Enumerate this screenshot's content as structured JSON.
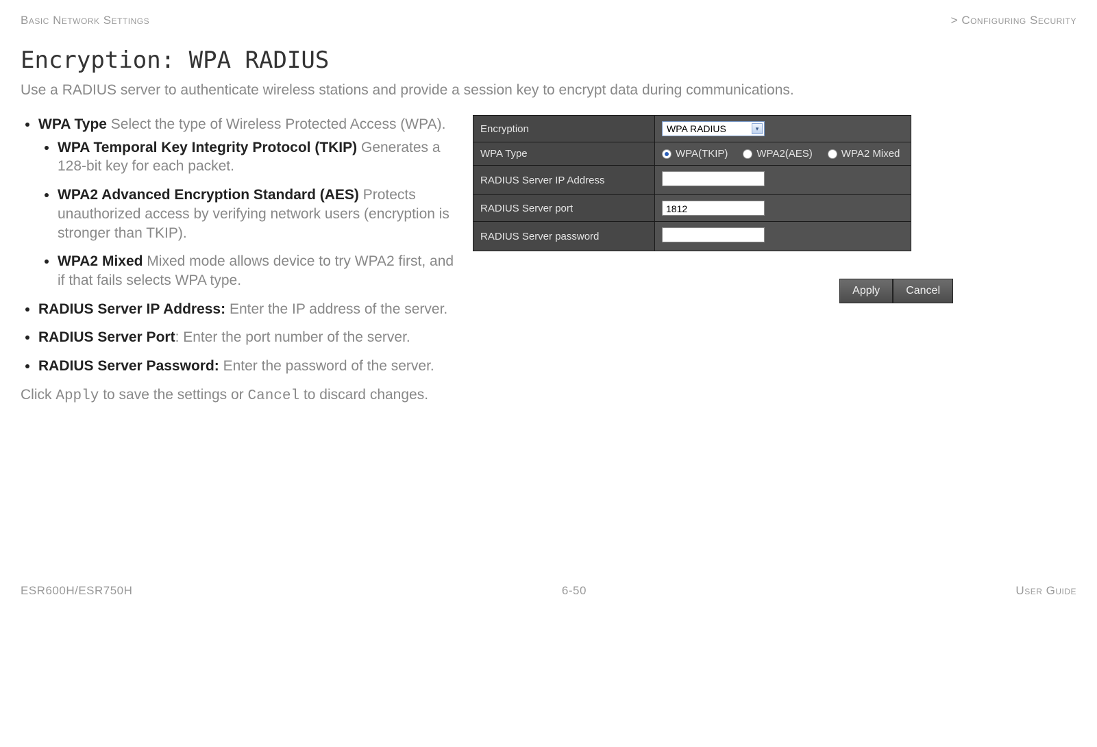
{
  "header": {
    "left": "Basic Network Settings",
    "right": "> Configuring Security"
  },
  "title": "Encryption: WPA RADIUS",
  "intro": "Use a RADIUS server to authenticate wireless stations and provide a session key to encrypt data during communications.",
  "bullets": {
    "wpa_type": {
      "term": "WPA Type",
      "desc": "  Select the type of Wireless Protected Access (WPA)."
    },
    "tkip": {
      "term": "WPA Temporal Key Integrity Protocol (TKIP)",
      "desc": "  Generates a 128-bit key for each packet."
    },
    "aes": {
      "term": "WPA2 Advanced Encryption Standard (AES)",
      "desc": "  Protects unauthorized access by verifying network users (encryption is stronger than TKIP)."
    },
    "mixed": {
      "term": "WPA2 Mixed",
      "desc": "  Mixed mode allows device to try WPA2 first, and if that fails selects WPA type."
    },
    "ip": {
      "term": "RADIUS Server IP Address:",
      "desc": " Enter the IP address of the server."
    },
    "port": {
      "term": "RADIUS Server Port",
      "desc": ": Enter the port number of the server."
    },
    "pw": {
      "term": "RADIUS Server Password:",
      "desc": " Enter the password of the server."
    }
  },
  "apply_line": {
    "pre": "Click ",
    "apply": "Apply",
    "mid": " to save the settings or ",
    "cancel": "Cancel",
    "post": " to discard changes."
  },
  "cfg": {
    "rows": {
      "encryption": {
        "label": "Encryption",
        "value": "WPA RADIUS"
      },
      "wpa_type": {
        "label": "WPA Type",
        "o1": "WPA(TKIP)",
        "o2": "WPA2(AES)",
        "o3": "WPA2 Mixed"
      },
      "ip": {
        "label": "RADIUS Server IP Address",
        "value": ""
      },
      "port": {
        "label": "RADIUS Server port",
        "value": "1812"
      },
      "pw": {
        "label": "RADIUS Server password",
        "value": ""
      }
    }
  },
  "buttons": {
    "apply": "Apply",
    "cancel": "Cancel"
  },
  "footer": {
    "left": "ESR600H/ESR750H",
    "center": "6-50",
    "right": "User Guide"
  }
}
